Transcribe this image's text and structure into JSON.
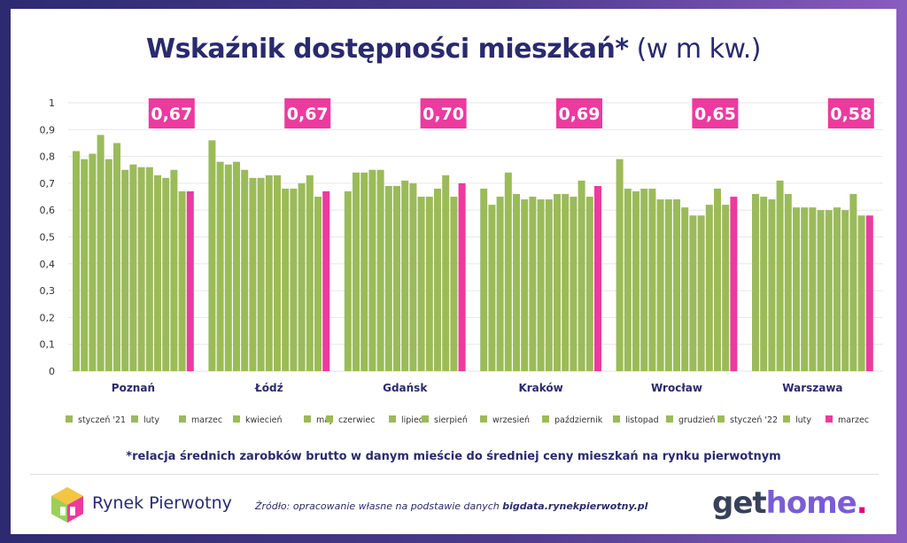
{
  "title": {
    "bold": "Wskaźnik dostępności mieszkań*",
    "normal": "(w m kw.)"
  },
  "footnote": "*relacja średnich zarobków brutto w danym mieście do średniej ceny mieszkań na rynku pierwotnym",
  "source": {
    "prefix": "Źródło: opracowanie własne na podstawie danych ",
    "link": "bigdata.rynekpierwotny.pl"
  },
  "logos": {
    "rynek": "Rynek Pierwotny",
    "gethome_a": "get",
    "gethome_b": "home",
    "gethome_c": "."
  },
  "colors": {
    "green": "#9bbb59",
    "pink": "#ec3a9f",
    "badge": "#ec3a9f",
    "navy": "#2a2a6e"
  },
  "chart_data": {
    "type": "bar",
    "ylim": [
      0,
      1
    ],
    "yticks": [
      "0",
      "0,1",
      "0,2",
      "0,3",
      "0,4",
      "0,5",
      "0,6",
      "0,7",
      "0,8",
      "0,9",
      "1"
    ],
    "grid": true,
    "series": [
      "styczeń '21",
      "luty",
      "marzec",
      "kwiecień",
      "maj",
      "czerwiec",
      "lipiec",
      "sierpień",
      "wrzesień",
      "październik",
      "listopad",
      "grudzień",
      "styczeń '22",
      "luty",
      "marzec"
    ],
    "legend_position": "bottom",
    "groups": [
      {
        "city": "Poznań",
        "badge": "0,67",
        "values": [
          0.82,
          0.79,
          0.81,
          0.88,
          0.79,
          0.85,
          0.75,
          0.77,
          0.76,
          0.76,
          0.73,
          0.72,
          0.75,
          0.67,
          0.67
        ]
      },
      {
        "city": "Łódź",
        "badge": "0,67",
        "values": [
          0.86,
          0.78,
          0.77,
          0.78,
          0.75,
          0.72,
          0.72,
          0.73,
          0.73,
          0.68,
          0.68,
          0.7,
          0.73,
          0.65,
          0.67
        ]
      },
      {
        "city": "Gdańsk",
        "badge": "0,70",
        "values": [
          0.67,
          0.74,
          0.74,
          0.75,
          0.75,
          0.69,
          0.69,
          0.71,
          0.7,
          0.65,
          0.65,
          0.68,
          0.73,
          0.65,
          0.7
        ]
      },
      {
        "city": "Kraków",
        "badge": "0,69",
        "values": [
          0.68,
          0.62,
          0.65,
          0.74,
          0.66,
          0.64,
          0.65,
          0.64,
          0.64,
          0.66,
          0.66,
          0.65,
          0.71,
          0.65,
          0.69
        ]
      },
      {
        "city": "Wrocław",
        "badge": "0,65",
        "values": [
          0.79,
          0.68,
          0.67,
          0.68,
          0.68,
          0.64,
          0.64,
          0.64,
          0.61,
          0.58,
          0.58,
          0.62,
          0.68,
          0.62,
          0.65
        ]
      },
      {
        "city": "Warszawa",
        "badge": "0,58",
        "values": [
          0.66,
          0.65,
          0.64,
          0.71,
          0.66,
          0.61,
          0.61,
          0.61,
          0.6,
          0.6,
          0.61,
          0.6,
          0.66,
          0.58,
          0.58
        ]
      }
    ]
  }
}
